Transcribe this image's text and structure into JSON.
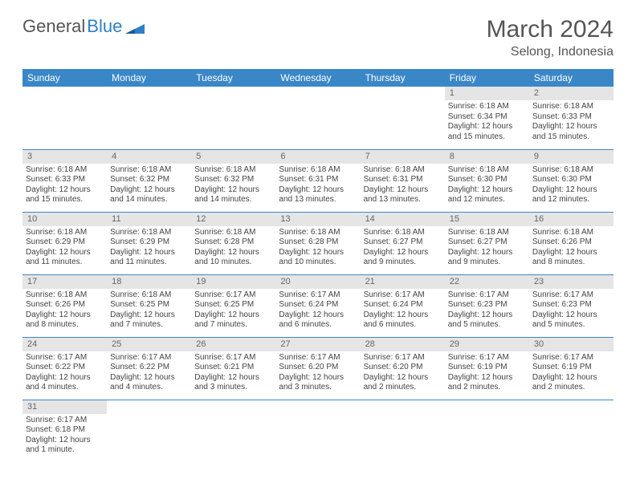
{
  "logo": {
    "part1": "General",
    "part2": "Blue"
  },
  "title": "March 2024",
  "location": "Selong, Indonesia",
  "colors": {
    "header_bg": "#3a87c8",
    "header_text": "#ffffff",
    "daynum_bg": "#e5e5e5",
    "daynum_text": "#666666",
    "border": "#3a87c8",
    "body_text": "#444444",
    "title_text": "#555555"
  },
  "day_headers": [
    "Sunday",
    "Monday",
    "Tuesday",
    "Wednesday",
    "Thursday",
    "Friday",
    "Saturday"
  ],
  "weeks": [
    [
      null,
      null,
      null,
      null,
      null,
      {
        "num": "1",
        "sunrise": "Sunrise: 6:18 AM",
        "sunset": "Sunset: 6:34 PM",
        "daylight": "Daylight: 12 hours and 15 minutes."
      },
      {
        "num": "2",
        "sunrise": "Sunrise: 6:18 AM",
        "sunset": "Sunset: 6:33 PM",
        "daylight": "Daylight: 12 hours and 15 minutes."
      }
    ],
    [
      {
        "num": "3",
        "sunrise": "Sunrise: 6:18 AM",
        "sunset": "Sunset: 6:33 PM",
        "daylight": "Daylight: 12 hours and 15 minutes."
      },
      {
        "num": "4",
        "sunrise": "Sunrise: 6:18 AM",
        "sunset": "Sunset: 6:32 PM",
        "daylight": "Daylight: 12 hours and 14 minutes."
      },
      {
        "num": "5",
        "sunrise": "Sunrise: 6:18 AM",
        "sunset": "Sunset: 6:32 PM",
        "daylight": "Daylight: 12 hours and 14 minutes."
      },
      {
        "num": "6",
        "sunrise": "Sunrise: 6:18 AM",
        "sunset": "Sunset: 6:31 PM",
        "daylight": "Daylight: 12 hours and 13 minutes."
      },
      {
        "num": "7",
        "sunrise": "Sunrise: 6:18 AM",
        "sunset": "Sunset: 6:31 PM",
        "daylight": "Daylight: 12 hours and 13 minutes."
      },
      {
        "num": "8",
        "sunrise": "Sunrise: 6:18 AM",
        "sunset": "Sunset: 6:30 PM",
        "daylight": "Daylight: 12 hours and 12 minutes."
      },
      {
        "num": "9",
        "sunrise": "Sunrise: 6:18 AM",
        "sunset": "Sunset: 6:30 PM",
        "daylight": "Daylight: 12 hours and 12 minutes."
      }
    ],
    [
      {
        "num": "10",
        "sunrise": "Sunrise: 6:18 AM",
        "sunset": "Sunset: 6:29 PM",
        "daylight": "Daylight: 12 hours and 11 minutes."
      },
      {
        "num": "11",
        "sunrise": "Sunrise: 6:18 AM",
        "sunset": "Sunset: 6:29 PM",
        "daylight": "Daylight: 12 hours and 11 minutes."
      },
      {
        "num": "12",
        "sunrise": "Sunrise: 6:18 AM",
        "sunset": "Sunset: 6:28 PM",
        "daylight": "Daylight: 12 hours and 10 minutes."
      },
      {
        "num": "13",
        "sunrise": "Sunrise: 6:18 AM",
        "sunset": "Sunset: 6:28 PM",
        "daylight": "Daylight: 12 hours and 10 minutes."
      },
      {
        "num": "14",
        "sunrise": "Sunrise: 6:18 AM",
        "sunset": "Sunset: 6:27 PM",
        "daylight": "Daylight: 12 hours and 9 minutes."
      },
      {
        "num": "15",
        "sunrise": "Sunrise: 6:18 AM",
        "sunset": "Sunset: 6:27 PM",
        "daylight": "Daylight: 12 hours and 9 minutes."
      },
      {
        "num": "16",
        "sunrise": "Sunrise: 6:18 AM",
        "sunset": "Sunset: 6:26 PM",
        "daylight": "Daylight: 12 hours and 8 minutes."
      }
    ],
    [
      {
        "num": "17",
        "sunrise": "Sunrise: 6:18 AM",
        "sunset": "Sunset: 6:26 PM",
        "daylight": "Daylight: 12 hours and 8 minutes."
      },
      {
        "num": "18",
        "sunrise": "Sunrise: 6:18 AM",
        "sunset": "Sunset: 6:25 PM",
        "daylight": "Daylight: 12 hours and 7 minutes."
      },
      {
        "num": "19",
        "sunrise": "Sunrise: 6:17 AM",
        "sunset": "Sunset: 6:25 PM",
        "daylight": "Daylight: 12 hours and 7 minutes."
      },
      {
        "num": "20",
        "sunrise": "Sunrise: 6:17 AM",
        "sunset": "Sunset: 6:24 PM",
        "daylight": "Daylight: 12 hours and 6 minutes."
      },
      {
        "num": "21",
        "sunrise": "Sunrise: 6:17 AM",
        "sunset": "Sunset: 6:24 PM",
        "daylight": "Daylight: 12 hours and 6 minutes."
      },
      {
        "num": "22",
        "sunrise": "Sunrise: 6:17 AM",
        "sunset": "Sunset: 6:23 PM",
        "daylight": "Daylight: 12 hours and 5 minutes."
      },
      {
        "num": "23",
        "sunrise": "Sunrise: 6:17 AM",
        "sunset": "Sunset: 6:23 PM",
        "daylight": "Daylight: 12 hours and 5 minutes."
      }
    ],
    [
      {
        "num": "24",
        "sunrise": "Sunrise: 6:17 AM",
        "sunset": "Sunset: 6:22 PM",
        "daylight": "Daylight: 12 hours and 4 minutes."
      },
      {
        "num": "25",
        "sunrise": "Sunrise: 6:17 AM",
        "sunset": "Sunset: 6:22 PM",
        "daylight": "Daylight: 12 hours and 4 minutes."
      },
      {
        "num": "26",
        "sunrise": "Sunrise: 6:17 AM",
        "sunset": "Sunset: 6:21 PM",
        "daylight": "Daylight: 12 hours and 3 minutes."
      },
      {
        "num": "27",
        "sunrise": "Sunrise: 6:17 AM",
        "sunset": "Sunset: 6:20 PM",
        "daylight": "Daylight: 12 hours and 3 minutes."
      },
      {
        "num": "28",
        "sunrise": "Sunrise: 6:17 AM",
        "sunset": "Sunset: 6:20 PM",
        "daylight": "Daylight: 12 hours and 2 minutes."
      },
      {
        "num": "29",
        "sunrise": "Sunrise: 6:17 AM",
        "sunset": "Sunset: 6:19 PM",
        "daylight": "Daylight: 12 hours and 2 minutes."
      },
      {
        "num": "30",
        "sunrise": "Sunrise: 6:17 AM",
        "sunset": "Sunset: 6:19 PM",
        "daylight": "Daylight: 12 hours and 2 minutes."
      }
    ],
    [
      {
        "num": "31",
        "sunrise": "Sunrise: 6:17 AM",
        "sunset": "Sunset: 6:18 PM",
        "daylight": "Daylight: 12 hours and 1 minute."
      },
      null,
      null,
      null,
      null,
      null,
      null
    ]
  ]
}
